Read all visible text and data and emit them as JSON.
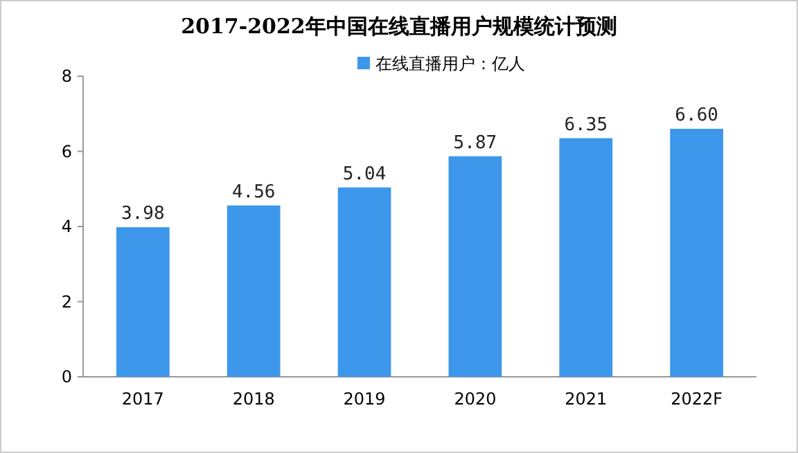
{
  "chart_data": {
    "type": "bar",
    "title": "2017-2022年中国在线直播用户规模统计预测",
    "categories": [
      "2017",
      "2018",
      "2019",
      "2020",
      "2021",
      "2022F"
    ],
    "series": [
      {
        "name": "在线直播用户：亿人",
        "color": "#3d97ea",
        "values": [
          3.98,
          4.56,
          5.04,
          5.87,
          6.35,
          6.6
        ]
      }
    ],
    "ylim": [
      0,
      8
    ],
    "yticks": [
      0,
      2,
      4,
      6,
      8
    ],
    "value_labels": [
      "3.98",
      "4.56",
      "5.04",
      "5.87",
      "6.35",
      "6.60"
    ],
    "legend": "top",
    "grid": false
  }
}
